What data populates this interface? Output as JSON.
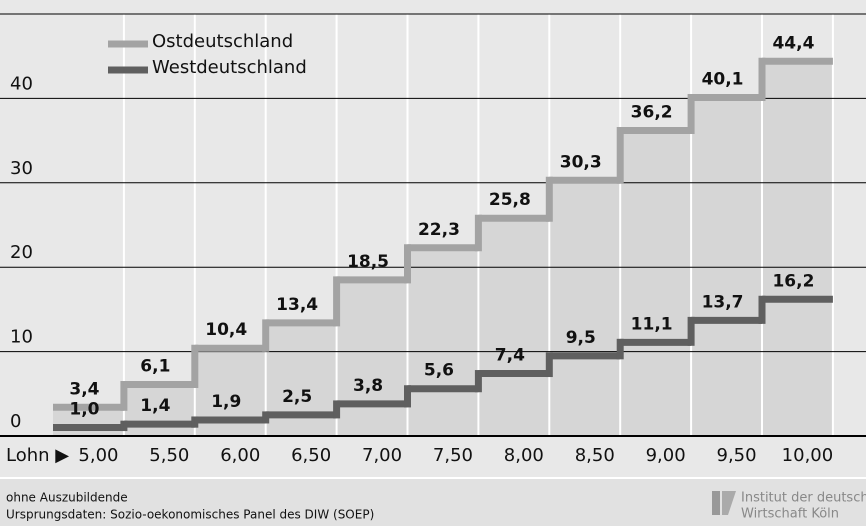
{
  "chart_data": {
    "type": "step",
    "x_label": "Lohn ▶",
    "categories": [
      "5,00",
      "5,50",
      "6,00",
      "6,50",
      "7,00",
      "7,50",
      "8,00",
      "8,50",
      "9,00",
      "9,50",
      "10,00"
    ],
    "series": [
      {
        "name": "Ostdeutschland",
        "color": "#a3a3a3",
        "values": [
          3.4,
          6.1,
          10.4,
          13.4,
          18.5,
          22.3,
          25.8,
          30.3,
          36.2,
          40.1,
          44.4
        ],
        "value_labels": [
          "3,4",
          "6,1",
          "10,4",
          "13,4",
          "18,5",
          "22,3",
          "25,8",
          "30,3",
          "36,2",
          "40,1",
          "44,4"
        ]
      },
      {
        "name": "Westdeutschland",
        "color": "#5f5f5f",
        "values": [
          1.0,
          1.4,
          1.9,
          2.5,
          3.8,
          5.6,
          7.4,
          9.5,
          11.1,
          13.7,
          16.2
        ],
        "value_labels": [
          "1,0",
          "1,4",
          "1,9",
          "2,5",
          "3,8",
          "5,6",
          "7,4",
          "9,5",
          "11,1",
          "13,7",
          "16,2"
        ]
      }
    ],
    "ylim": [
      0,
      50
    ],
    "yticks": [
      0,
      10,
      20,
      30,
      40
    ],
    "grid": true,
    "notes": [
      "ohne Auszubildende",
      "Ursprungsdaten: Sozio-oekonomisches Panel des DIW (SOEP)"
    ],
    "logo": [
      "Institut der deutsche",
      "Wirtschaft Köln"
    ]
  }
}
